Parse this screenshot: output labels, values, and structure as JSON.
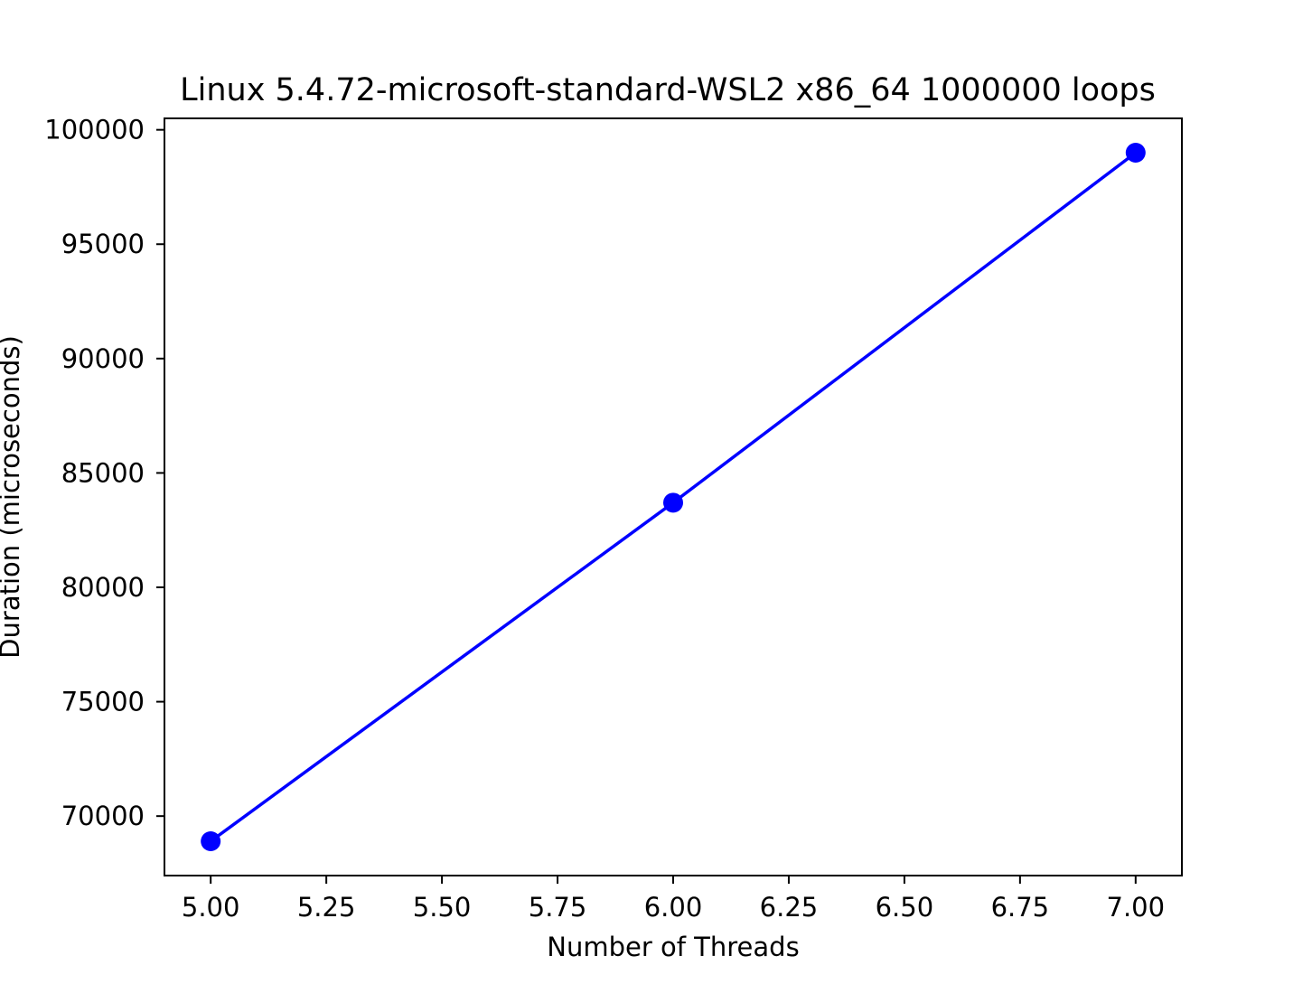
{
  "chart_data": {
    "type": "line",
    "title": "Linux 5.4.72-microsoft-standard-WSL2 x86_64 1000000 loops",
    "xlabel": "Number of Threads",
    "ylabel": "Duration (microseconds)",
    "x": [
      5,
      6,
      7
    ],
    "series": [
      {
        "values": [
          68900,
          83700,
          99000
        ],
        "color": "#0000ff",
        "marker": "circle"
      }
    ],
    "xlim": [
      4.9,
      7.1
    ],
    "ylim": [
      67400,
      100500
    ],
    "xticks": [
      "5.00",
      "5.25",
      "5.50",
      "5.75",
      "6.00",
      "6.25",
      "6.50",
      "6.75",
      "7.00"
    ],
    "yticks": [
      "70000",
      "75000",
      "80000",
      "85000",
      "90000",
      "95000",
      "100000"
    ],
    "grid": false,
    "legend": "none"
  }
}
